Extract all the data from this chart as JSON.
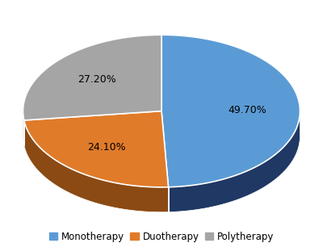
{
  "labels": [
    "Monotherapy",
    "Duotherapy",
    "Polytherapy"
  ],
  "values": [
    49.7,
    24.1,
    27.2
  ],
  "colors": [
    "#5B9BD5",
    "#E07B2A",
    "#A5A5A5"
  ],
  "side_colors": [
    "#1F3864",
    "#8B4A13",
    "#7A7A7A"
  ],
  "pct_labels": [
    "49.70%",
    "24.10%",
    "27.20%"
  ],
  "legend_labels": [
    "Monotherapy",
    "Duotherapy",
    "Polytherapy"
  ],
  "legend_colors": [
    "#5B9BD5",
    "#E07B2A",
    "#A5A5A5"
  ],
  "figsize": [
    4.0,
    3.06
  ],
  "dpi": 100,
  "background_color": "#FFFFFF"
}
